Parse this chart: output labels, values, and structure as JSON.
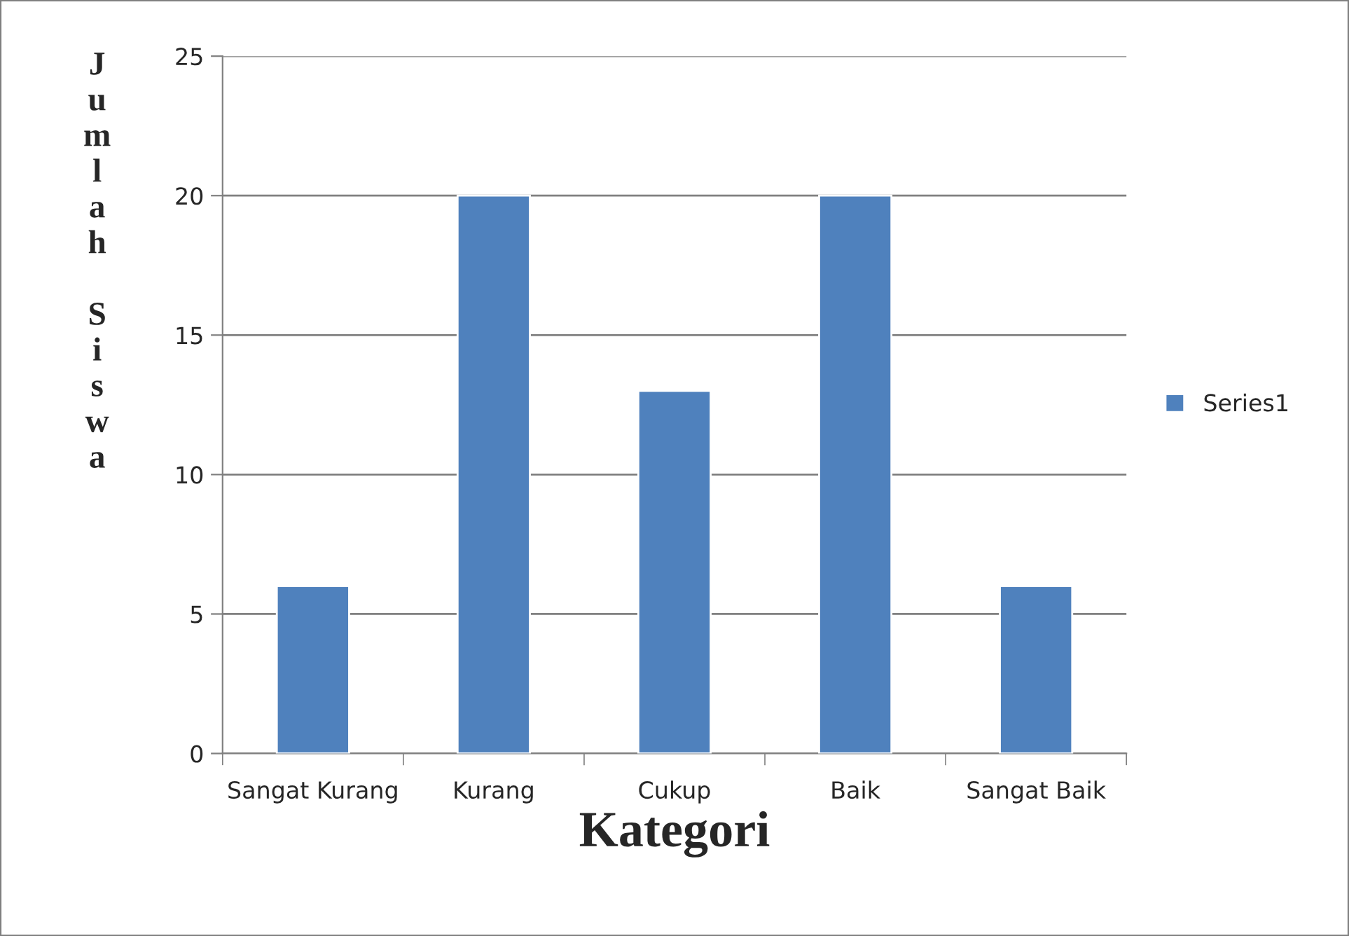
{
  "chart_data": {
    "type": "bar",
    "xlabel": "Kategori",
    "ylabel": "Jumlah Siswa",
    "categories": [
      "Sangat Kurang",
      "Kurang",
      "Cukup",
      "Baik",
      "Sangat Baik"
    ],
    "series": [
      {
        "name": "Series1",
        "color": "#4f81bd",
        "values": [
          6,
          20,
          13,
          20,
          6
        ]
      }
    ],
    "ylim": [
      0,
      25
    ],
    "yticks": [
      0,
      5,
      10,
      15,
      20,
      25
    ],
    "grid": "y",
    "legend": "right"
  }
}
